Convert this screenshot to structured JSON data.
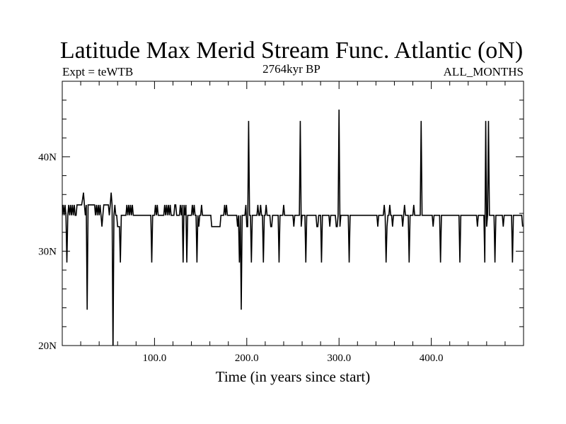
{
  "chart_data": {
    "type": "line",
    "title": "Latitude Max Merid Stream Func. Atlantic (oN)",
    "subtitle_left": "Expt = teWTB",
    "subtitle_center": "2764kyr BP",
    "subtitle_right": "ALL_MONTHS",
    "xlabel": "Time (in years since start)",
    "ylabel": "",
    "xlim": [
      0,
      500
    ],
    "ylim": [
      20,
      48
    ],
    "x_ticks": [
      100,
      200,
      300,
      400
    ],
    "x_tick_labels": [
      "100.0",
      "200.0",
      "300.0",
      "400.0"
    ],
    "y_ticks": [
      20,
      30,
      40
    ],
    "y_tick_labels": [
      "20N",
      "30N",
      "40N"
    ],
    "grid": false,
    "legend": "none",
    "line_color": "#000000",
    "series": [
      {
        "x": [
          0,
          1,
          2,
          3,
          4,
          5,
          6,
          7,
          8,
          9,
          10,
          11,
          12,
          13,
          14,
          15,
          16,
          17,
          18,
          19,
          20,
          21,
          22,
          23,
          24,
          25,
          26,
          27,
          28,
          29,
          30,
          31,
          32,
          33,
          34,
          35,
          36,
          37,
          38,
          39,
          40,
          41,
          42,
          43,
          44,
          45,
          46,
          47,
          48,
          49,
          50,
          51,
          52,
          53,
          54,
          55,
          56,
          57,
          58,
          59,
          60,
          61,
          62,
          63,
          64,
          65,
          66,
          67,
          68,
          69,
          70,
          71,
          72,
          73,
          74,
          75,
          76,
          77,
          78,
          79,
          80,
          81,
          82,
          83,
          84,
          85,
          86,
          87,
          88,
          89,
          90,
          91,
          92,
          93,
          94,
          95,
          96,
          97,
          98,
          99,
          100,
          101,
          102,
          103,
          104,
          105,
          106,
          107,
          108,
          109,
          110,
          111,
          112,
          113,
          114,
          115,
          116,
          117,
          118,
          119,
          120,
          121,
          122,
          123,
          124,
          125,
          126,
          127,
          128,
          129,
          130,
          131,
          132,
          133,
          134,
          135,
          136,
          137,
          138,
          139,
          140,
          141,
          142,
          143,
          144,
          145,
          146,
          147,
          148,
          149,
          150,
          151,
          152,
          153,
          154,
          155,
          156,
          157,
          158,
          159,
          160,
          161,
          162,
          163,
          164,
          165,
          166,
          167,
          168,
          169,
          170,
          171,
          172,
          173,
          174,
          175,
          176,
          177,
          178,
          179,
          180,
          181,
          182,
          183,
          184,
          185,
          186,
          187,
          188,
          189,
          190,
          191,
          192,
          193,
          194,
          195,
          196,
          197,
          198,
          199,
          200,
          201,
          202,
          203,
          204,
          205,
          206,
          207,
          208,
          209,
          210,
          211,
          212,
          213,
          214,
          215,
          216,
          217,
          218,
          219,
          220,
          221,
          222,
          223,
          224,
          225,
          226,
          227,
          228,
          229,
          230,
          231,
          232,
          233,
          234,
          235,
          236,
          237,
          238,
          239,
          240,
          241,
          242,
          243,
          244,
          245,
          246,
          247,
          248,
          249,
          250,
          251,
          252,
          253,
          254,
          255,
          256,
          257,
          258,
          259,
          260,
          261,
          262,
          263,
          264,
          265,
          266,
          267,
          268,
          269,
          270,
          271,
          272,
          273,
          274,
          275,
          276,
          277,
          278,
          279,
          280,
          281,
          282,
          283,
          284,
          285,
          286,
          287,
          288,
          289,
          290,
          291,
          292,
          293,
          294,
          295,
          296,
          297,
          298,
          299,
          300,
          301,
          302,
          303,
          304,
          305,
          306,
          307,
          308,
          309,
          310,
          311,
          312,
          313,
          314,
          315,
          316,
          317,
          318,
          319,
          320,
          321,
          322,
          323,
          324,
          325,
          326,
          327,
          328,
          329,
          330,
          331,
          332,
          333,
          334,
          335,
          336,
          337,
          338,
          339,
          340,
          341,
          342,
          343,
          344,
          345,
          346,
          347,
          348,
          349,
          350,
          351,
          352,
          353,
          354,
          355,
          356,
          357,
          358,
          359,
          360,
          361,
          362,
          363,
          364,
          365,
          366,
          367,
          368,
          369,
          370,
          371,
          372,
          373,
          374,
          375,
          376,
          377,
          378,
          379,
          380,
          381,
          382,
          383,
          384,
          385,
          386,
          387,
          388,
          389,
          390,
          391,
          392,
          393,
          394,
          395,
          396,
          397,
          398,
          399,
          400,
          401,
          402,
          403,
          404,
          405,
          406,
          407,
          408,
          409,
          410,
          411,
          412,
          413,
          414,
          415,
          416,
          417,
          418,
          419,
          420,
          421,
          422,
          423,
          424,
          425,
          426,
          427,
          428,
          429,
          430,
          431,
          432,
          433,
          434,
          435,
          436,
          437,
          438,
          439,
          440,
          441,
          442,
          443,
          444,
          445,
          446,
          447,
          448,
          449,
          450,
          451,
          452,
          453,
          454,
          455,
          456,
          457,
          458,
          459,
          460,
          461,
          462,
          463,
          464,
          465,
          466,
          467,
          468,
          469,
          470,
          471,
          472,
          473,
          474,
          475,
          476,
          477,
          478,
          479,
          480,
          481,
          482,
          483,
          484,
          485,
          486,
          487,
          488,
          489,
          490,
          491,
          492,
          493,
          494,
          495,
          496,
          497,
          498,
          499
        ],
        "values": [
          33.8,
          34.9,
          33.8,
          34.9,
          33.8,
          28.8,
          33.8,
          34.9,
          33.8,
          34.9,
          33.8,
          34.9,
          33.8,
          34.9,
          33.8,
          33.8,
          34.9,
          34.9,
          34.9,
          34.9,
          34.9,
          34.9,
          35.5,
          36.2,
          34.9,
          33.8,
          34.9,
          23.8,
          34.9,
          34.9,
          34.9,
          34.9,
          34.9,
          34.9,
          34.9,
          34.9,
          33.8,
          34.9,
          33.8,
          34.9,
          33.8,
          34.9,
          33.8,
          32.6,
          33.8,
          34.9,
          34.9,
          34.9,
          34.9,
          34.9,
          34.9,
          33.8,
          34.9,
          36.2,
          34.9,
          19.0,
          33.8,
          34.9,
          33.8,
          33.8,
          32.6,
          32.6,
          32.6,
          28.8,
          33.8,
          33.8,
          33.8,
          33.8,
          33.8,
          33.8,
          34.9,
          33.8,
          34.9,
          33.8,
          34.9,
          33.8,
          34.9,
          33.8,
          33.8,
          33.8,
          33.8,
          33.8,
          33.8,
          33.8,
          33.8,
          33.8,
          33.8,
          33.8,
          33.8,
          33.8,
          33.8,
          33.8,
          33.8,
          33.8,
          33.8,
          33.8,
          33.8,
          28.8,
          33.8,
          33.8,
          33.8,
          34.9,
          33.8,
          34.9,
          33.8,
          33.8,
          33.8,
          33.8,
          33.8,
          33.8,
          33.8,
          34.9,
          33.8,
          34.9,
          33.8,
          34.9,
          33.8,
          34.9,
          33.8,
          33.8,
          33.8,
          33.8,
          34.9,
          34.9,
          33.8,
          33.8,
          33.8,
          33.8,
          34.9,
          33.8,
          34.9,
          28.8,
          34.9,
          33.8,
          34.9,
          28.8,
          33.8,
          33.8,
          33.8,
          33.8,
          33.8,
          34.9,
          33.8,
          34.9,
          33.8,
          33.8,
          28.8,
          33.8,
          32.6,
          33.8,
          33.8,
          34.9,
          33.8,
          33.8,
          33.8,
          33.8,
          33.8,
          33.8,
          33.8,
          33.8,
          33.8,
          33.8,
          32.6,
          32.6,
          32.6,
          32.6,
          32.6,
          32.6,
          32.6,
          32.6,
          32.6,
          32.6,
          33.8,
          33.8,
          33.8,
          33.8,
          34.9,
          33.8,
          34.9,
          33.8,
          33.8,
          33.8,
          33.8,
          33.8,
          33.8,
          33.8,
          33.8,
          33.8,
          33.8,
          33.8,
          32.6,
          33.8,
          28.8,
          33.8,
          23.8,
          33.8,
          33.8,
          33.8,
          33.8,
          34.9,
          32.6,
          32.6,
          43.8,
          33.8,
          33.8,
          28.8,
          33.8,
          33.8,
          33.8,
          33.8,
          33.8,
          33.8,
          34.9,
          33.8,
          33.8,
          34.9,
          33.8,
          33.8,
          28.8,
          33.8,
          33.8,
          34.9,
          33.8,
          33.8,
          33.8,
          33.8,
          32.6,
          32.6,
          33.8,
          33.8,
          33.8,
          33.8,
          33.8,
          33.8,
          33.8,
          28.8,
          33.8,
          33.8,
          33.8,
          33.8,
          34.9,
          33.8,
          33.8,
          33.8,
          33.8,
          33.8,
          33.8,
          33.8,
          33.8,
          33.8,
          33.8,
          32.6,
          33.8,
          33.8,
          33.8,
          33.8,
          33.8,
          33.8,
          43.8,
          32.6,
          33.8,
          33.8,
          33.8,
          33.8,
          28.8,
          33.8,
          33.8,
          33.8,
          33.8,
          33.8,
          33.8,
          33.8,
          33.8,
          33.8,
          33.8,
          33.8,
          32.6,
          32.6,
          33.8,
          33.8,
          33.8,
          28.8,
          33.8,
          33.8,
          33.8,
          33.8,
          33.8,
          33.8,
          33.8,
          33.8,
          32.6,
          33.8,
          33.8,
          33.8,
          33.8,
          33.8,
          33.8,
          32.6,
          32.6,
          33.8,
          45.0,
          32.6,
          33.8,
          33.8,
          33.8,
          33.8,
          33.8,
          33.8,
          33.8,
          33.8,
          33.8,
          28.8,
          33.8,
          33.8,
          33.8,
          33.8,
          33.8,
          33.8,
          33.8,
          33.8,
          33.8,
          33.8,
          33.8,
          33.8,
          33.8,
          33.8,
          33.8,
          33.8,
          33.8,
          33.8,
          33.8,
          33.8,
          33.8,
          33.8,
          33.8,
          33.8,
          33.8,
          33.8,
          33.8,
          33.8,
          33.8,
          33.8,
          32.6,
          33.8,
          33.8,
          33.8,
          33.8,
          33.8,
          33.8,
          34.9,
          33.8,
          28.8,
          32.6,
          33.8,
          33.8,
          34.9,
          33.8,
          33.8,
          32.6,
          33.8,
          33.8,
          33.8,
          33.8,
          33.8,
          33.8,
          33.8,
          33.8,
          33.8,
          33.8,
          32.6,
          33.8,
          34.9,
          33.8,
          33.8,
          33.8,
          33.8,
          28.8,
          33.8,
          33.8,
          33.8,
          33.8,
          34.9,
          33.8,
          33.8,
          33.8,
          33.8,
          33.8,
          33.8,
          33.8,
          43.8,
          33.8,
          33.8,
          33.8,
          33.8,
          33.8,
          33.8,
          33.8,
          33.8,
          33.8,
          33.8,
          33.8,
          33.8,
          32.6,
          33.8,
          33.8,
          33.8,
          33.8,
          33.8,
          33.8,
          33.8,
          28.8,
          33.8,
          33.8,
          33.8,
          33.8,
          33.8,
          33.8,
          33.8,
          33.8,
          33.8,
          33.8,
          33.8,
          33.8,
          33.8,
          33.8,
          33.8,
          33.8,
          33.8,
          33.8,
          33.8,
          33.8,
          28.8,
          33.8,
          33.8,
          33.8,
          33.8,
          33.8,
          33.8,
          33.8,
          33.8,
          33.8,
          33.8,
          33.8,
          33.8,
          33.8,
          33.8,
          33.8,
          33.8,
          33.8,
          33.8,
          32.6,
          33.8,
          33.8,
          33.8,
          33.8,
          33.8,
          33.8,
          33.8,
          28.8,
          43.8,
          32.6,
          33.8,
          43.8,
          33.8,
          33.8,
          33.8,
          33.8,
          33.8,
          33.8,
          28.8,
          33.8,
          33.8,
          33.8,
          33.8,
          33.8,
          33.8,
          33.8,
          33.8,
          32.6,
          33.8,
          33.8,
          33.8,
          33.8,
          33.8,
          33.8,
          33.8,
          33.8,
          33.8,
          28.8,
          33.8,
          33.8,
          33.8,
          33.8,
          33.8,
          33.8,
          33.8,
          33.8,
          33.8,
          33.8,
          32.6
        ]
      }
    ]
  }
}
